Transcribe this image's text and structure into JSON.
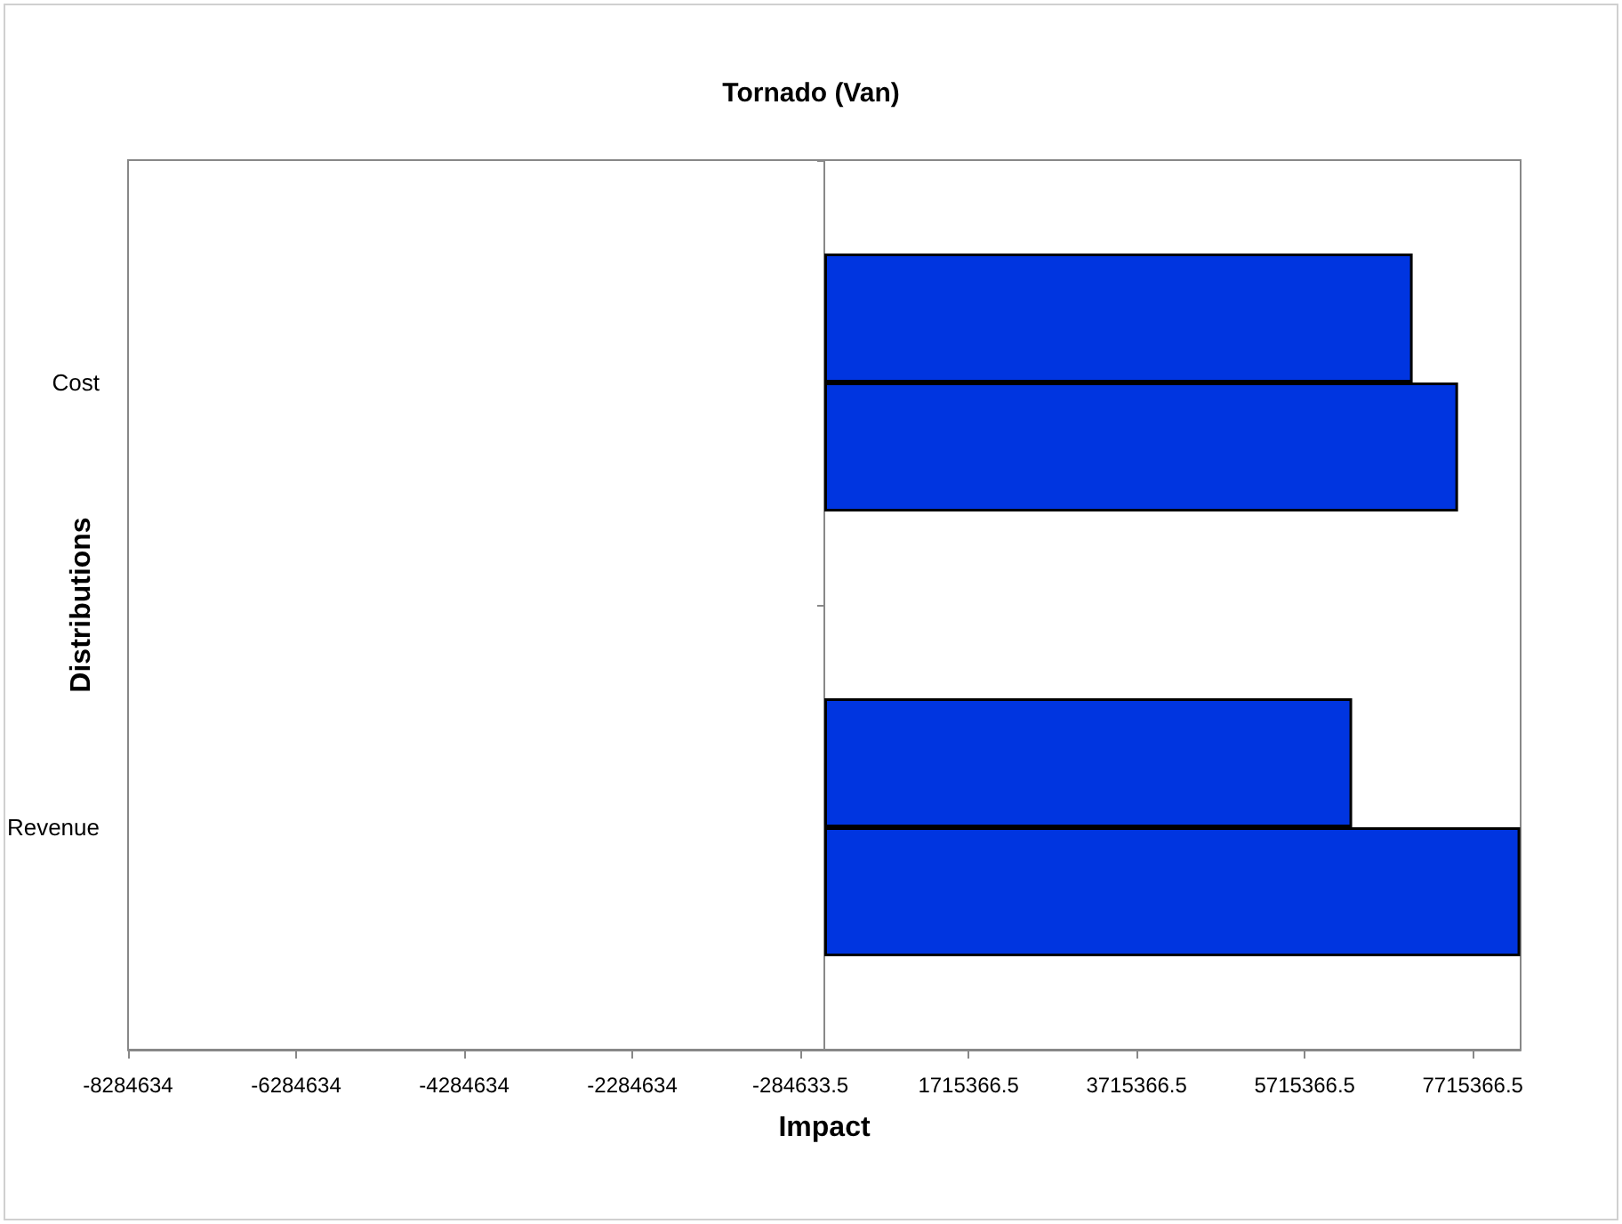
{
  "chart_data": {
    "type": "bar",
    "orientation": "horizontal",
    "title": "Tornado (Van)",
    "xlabel": "Impact",
    "ylabel": "Distributions",
    "categories": [
      "Cost",
      "Revenue"
    ],
    "series": [
      {
        "color": "#0035e0",
        "values": [
          7000000,
          6280000
        ]
      },
      {
        "color": "#0035e0",
        "values": [
          7540000,
          8280000
        ]
      }
    ],
    "xlim": [
      -8284634,
      8284634
    ],
    "xticks": [
      -8284634,
      -6284634,
      -4284634,
      -2284634,
      -284633.5,
      1715366.5,
      3715366.5,
      5715366.5,
      7715366.5
    ],
    "grid": false
  }
}
